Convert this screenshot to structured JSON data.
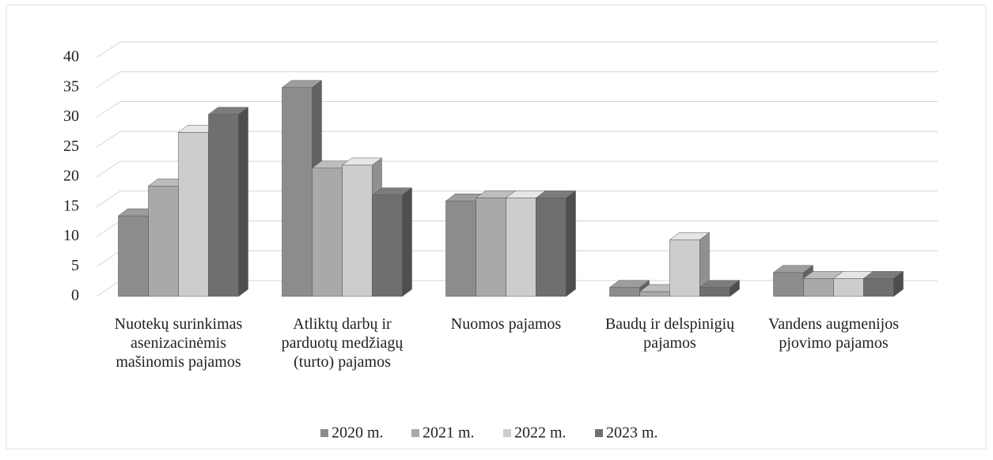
{
  "chart_data": {
    "type": "bar3d",
    "categories": [
      "Nuotekų surinkimas asenizacinėmis mašinomis pajamos",
      "Atliktų darbų ir parduotų medžiagų (turto) pajamos",
      "Nuomos pajamos",
      "Baudų ir delspinigių pajamos",
      "Vandens augmenijos pjovimo pajamos"
    ],
    "series": [
      {
        "name": "2020 m.",
        "color": "#8c8c8c",
        "values": [
          13.5,
          35,
          16,
          1.5,
          4
        ]
      },
      {
        "name": "2021 m.",
        "color": "#a9a9a9",
        "values": [
          18.5,
          21.5,
          16.5,
          0.8,
          3
        ]
      },
      {
        "name": "2022 m.",
        "color": "#cdcdcd",
        "values": [
          27.5,
          22,
          16.5,
          9.5,
          3
        ]
      },
      {
        "name": "2023 m.",
        "color": "#6f6f6f",
        "values": [
          30.5,
          17,
          16.5,
          1.5,
          3
        ]
      }
    ],
    "ylim": [
      0,
      40
    ],
    "yticks": [
      0,
      5,
      10,
      15,
      20,
      25,
      30,
      35,
      40
    ],
    "grid": true,
    "legend": "bottom"
  }
}
